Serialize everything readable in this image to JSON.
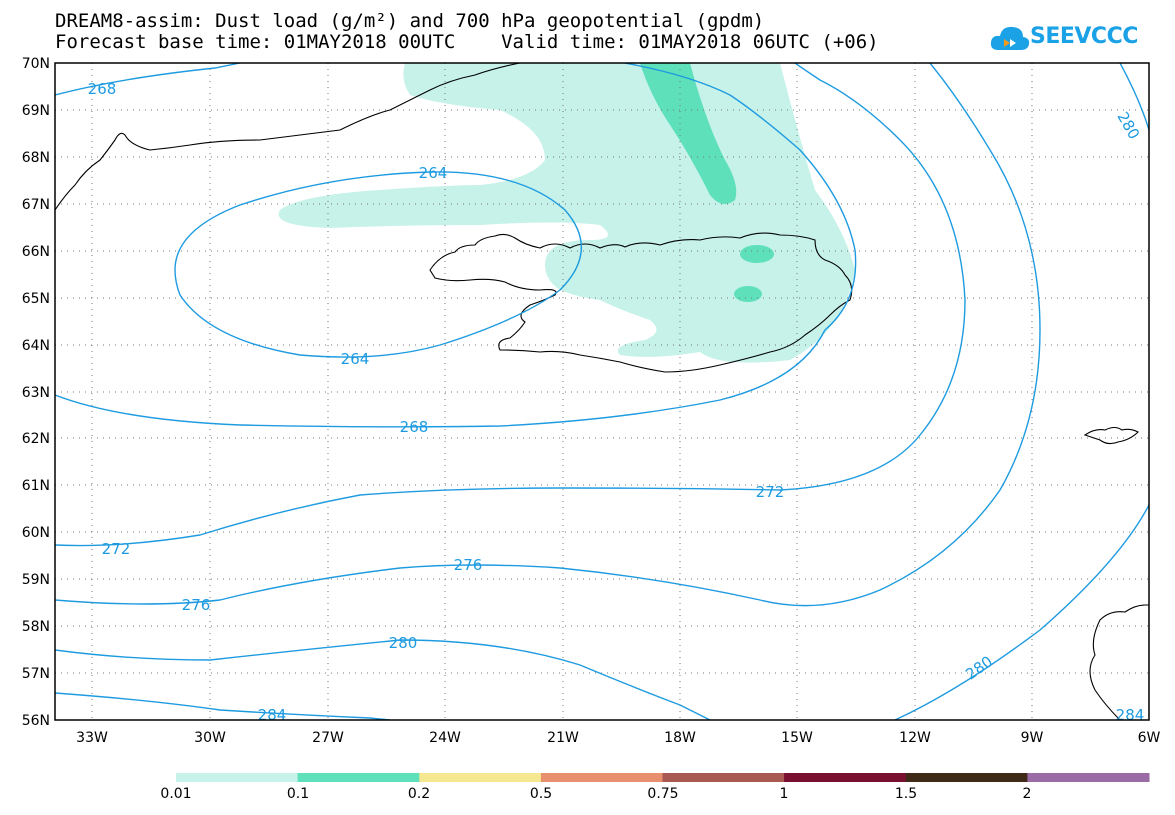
{
  "header": {
    "line1": "DREAM8-assim: Dust load (g/m²) and 700 hPa geopotential (gpdm)",
    "line2": "Forecast base time: 01MAY2018 00UTC    Valid time: 01MAY2018 06UTC (+06)"
  },
  "logo": {
    "text": "SEEVCCC",
    "icon": "cloud-icon",
    "color": "#1aa1e6"
  },
  "map": {
    "region": "North Atlantic / Iceland",
    "lat_labels": [
      "70N",
      "69N",
      "68N",
      "67N",
      "66N",
      "65N",
      "64N",
      "63N",
      "62N",
      "61N",
      "60N",
      "59N",
      "58N",
      "57N",
      "56N"
    ],
    "lon_labels": [
      "33W",
      "30W",
      "27W",
      "24W",
      "21W",
      "18W",
      "15W",
      "12W",
      "9W",
      "6W"
    ],
    "contour_color": "#1e9be0",
    "contour_labels": [
      "268",
      "264",
      "264",
      "268",
      "272",
      "272",
      "276",
      "276",
      "280",
      "280",
      "280",
      "284",
      "284"
    ]
  },
  "colorbar": {
    "tick_labels": [
      "0.01",
      "0.1",
      "0.2",
      "0.5",
      "0.75",
      "1",
      "1.5",
      "2"
    ],
    "colors": [
      "#c6f2ea",
      "#5ee0bb",
      "#f5e890",
      "#e8906e",
      "#a85a52",
      "#7a1030",
      "#3f2a18",
      "#9b6ba6"
    ]
  }
}
